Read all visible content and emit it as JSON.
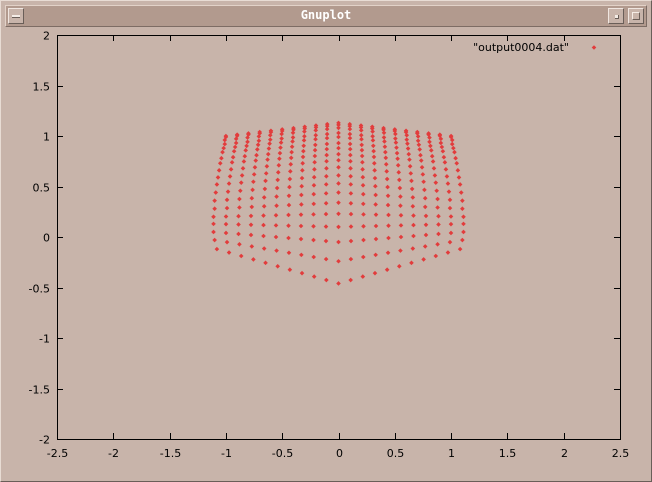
{
  "window": {
    "title": "Gnuplot",
    "icons": {
      "menu": "window-menu-icon",
      "minimize": "minimize-icon",
      "maximize": "maximize-icon"
    }
  },
  "colors": {
    "background": "#c8b4aa",
    "titlebar": "#b29a8e",
    "points": "#e23c3c",
    "axes": "#000000"
  },
  "chart_data": {
    "type": "scatter",
    "title": "",
    "xlabel": "",
    "ylabel": "",
    "xlim": [
      -2.5,
      2.5
    ],
    "ylim": [
      -2,
      2
    ],
    "xticks": [
      -2.5,
      -2,
      -1.5,
      -1,
      -0.5,
      0,
      0.5,
      1,
      1.5,
      2,
      2.5
    ],
    "yticks": [
      -2,
      -1.5,
      -1,
      -0.5,
      0,
      0.5,
      1,
      1.5,
      2
    ],
    "xtick_labels": [
      "-2.5",
      "-2",
      "-1.5",
      "-1",
      "-0.5",
      "0",
      "0.5",
      "1",
      "1.5",
      "2",
      "2.5"
    ],
    "ytick_labels": [
      "-2",
      "-1.5",
      "-1",
      "-0.5",
      "0",
      "0.5",
      "1",
      "1.5",
      "2"
    ],
    "grid": false,
    "legend": {
      "position": "top-right",
      "entries": [
        "\"output0004.dat\""
      ]
    },
    "marker": "diamond",
    "series": [
      {
        "name": "\"output0004.dat\"",
        "point_grid": {
          "columns": 21,
          "x_range": [
            -1.0,
            1.0
          ],
          "rows": [
            {
              "y_center": 1.13,
              "y_edge": 1.0,
              "x_edge": 1.0
            },
            {
              "y_center": 1.11,
              "y_edge": 0.99,
              "x_edge": 1.0
            },
            {
              "y_center": 1.08,
              "y_edge": 0.96,
              "x_edge": 1.01
            },
            {
              "y_center": 1.03,
              "y_edge": 0.92,
              "x_edge": 1.01
            },
            {
              "y_center": 0.99,
              "y_edge": 0.88,
              "x_edge": 1.02
            },
            {
              "y_center": 0.93,
              "y_edge": 0.84,
              "x_edge": 1.03
            },
            {
              "y_center": 0.88,
              "y_edge": 0.78,
              "x_edge": 1.04
            },
            {
              "y_center": 0.82,
              "y_edge": 0.73,
              "x_edge": 1.05
            },
            {
              "y_center": 0.76,
              "y_edge": 0.66,
              "x_edge": 1.06
            },
            {
              "y_center": 0.69,
              "y_edge": 0.59,
              "x_edge": 1.07
            },
            {
              "y_center": 0.61,
              "y_edge": 0.52,
              "x_edge": 1.08
            },
            {
              "y_center": 0.53,
              "y_edge": 0.44,
              "x_edge": 1.09
            },
            {
              "y_center": 0.44,
              "y_edge": 0.36,
              "x_edge": 1.1
            },
            {
              "y_center": 0.34,
              "y_edge": 0.28,
              "x_edge": 1.1
            },
            {
              "y_center": 0.23,
              "y_edge": 0.2,
              "x_edge": 1.11
            },
            {
              "y_center": 0.1,
              "y_edge": 0.13,
              "x_edge": 1.11
            },
            {
              "y_center": -0.05,
              "y_edge": 0.05,
              "x_edge": 1.11
            },
            {
              "y_center": -0.24,
              "y_edge": -0.03,
              "x_edge": 1.1
            },
            {
              "y_center": -0.46,
              "y_edge": -0.12,
              "x_edge": 1.08
            }
          ]
        }
      }
    ]
  }
}
